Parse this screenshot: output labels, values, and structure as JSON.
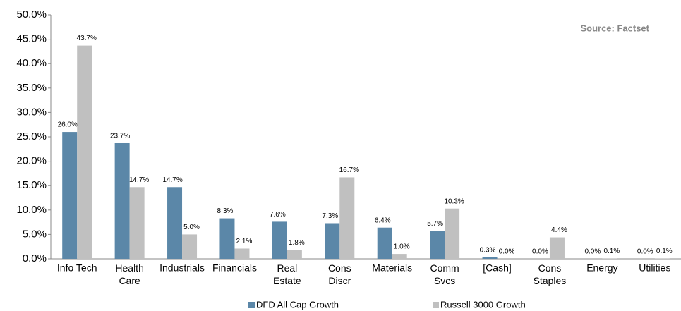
{
  "chart_data": {
    "type": "bar",
    "annotation": "Source: Factset",
    "categories": [
      "Info Tech",
      "Health\nCare",
      "Industrials",
      "Financials",
      "Real\nEstate",
      "Cons\nDiscr",
      "Materials",
      "Comm\nSvcs",
      "[Cash]",
      "Cons\nStaples",
      "Energy",
      "Utilities"
    ],
    "series": [
      {
        "name": "DFD All Cap Growth",
        "color": "#5b87a8",
        "values": [
          26.0,
          23.7,
          14.7,
          8.3,
          7.6,
          7.3,
          6.4,
          5.7,
          0.3,
          0.0,
          0.0,
          0.0
        ],
        "value_labels": [
          "26.0%",
          "23.7%",
          "14.7%",
          "8.3%",
          "7.6%",
          "7.3%",
          "6.4%",
          "5.7%",
          "0.3%",
          "0.0%",
          "0.0%",
          "0.0%"
        ]
      },
      {
        "name": "Russell 3000 Growth",
        "color": "#c0c0c0",
        "values": [
          43.7,
          14.7,
          5.0,
          2.1,
          1.8,
          16.7,
          1.0,
          10.3,
          0.0,
          4.4,
          0.1,
          0.1
        ],
        "value_labels": [
          "43.7%",
          "14.7%",
          "5.0%",
          "2.1%",
          "1.8%",
          "16.7%",
          "1.0%",
          "10.3%",
          "0.0%",
          "4.4%",
          "0.1%",
          "0.1%"
        ]
      }
    ],
    "ylim": [
      0,
      50
    ],
    "yticks": [
      {
        "value": 0,
        "label": "0.0%"
      },
      {
        "value": 5,
        "label": "5.0%"
      },
      {
        "value": 10,
        "label": "10.0%"
      },
      {
        "value": 15,
        "label": "15.0%"
      },
      {
        "value": 20,
        "label": "20.0%"
      },
      {
        "value": 25,
        "label": "25.0%"
      },
      {
        "value": 30,
        "label": "30.0%"
      },
      {
        "value": 35,
        "label": "35.0%"
      },
      {
        "value": 40,
        "label": "40.0%"
      },
      {
        "value": 45,
        "label": "45.0%"
      },
      {
        "value": 50,
        "label": "50.0%"
      }
    ],
    "grid": false
  }
}
